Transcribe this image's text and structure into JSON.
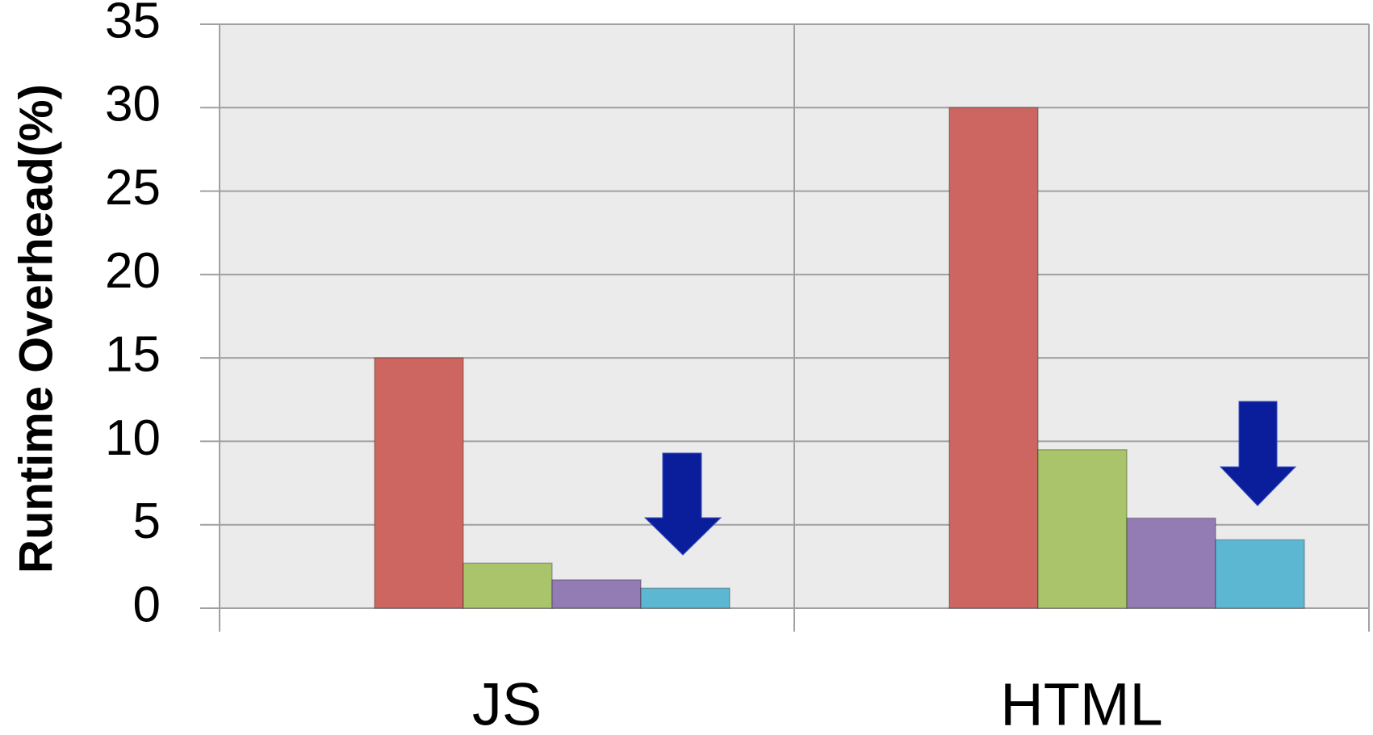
{
  "chart_data": {
    "type": "bar",
    "y_label": "Runtime Overhead(%)",
    "categories": [
      "JS",
      "HTML"
    ],
    "series": [
      {
        "color": "#cd6660",
        "values": [
          15,
          30
        ]
      },
      {
        "color": "#a9c46a",
        "values": [
          2.7,
          9.5
        ]
      },
      {
        "color": "#937cb3",
        "values": [
          1.7,
          5.4
        ]
      },
      {
        "color": "#5cb8d2",
        "values": [
          1.2,
          4.1
        ]
      }
    ],
    "ylim": [
      0,
      35
    ],
    "yticks": [
      0,
      5,
      10,
      15,
      20,
      25,
      30,
      35
    ],
    "grid": true
  }
}
